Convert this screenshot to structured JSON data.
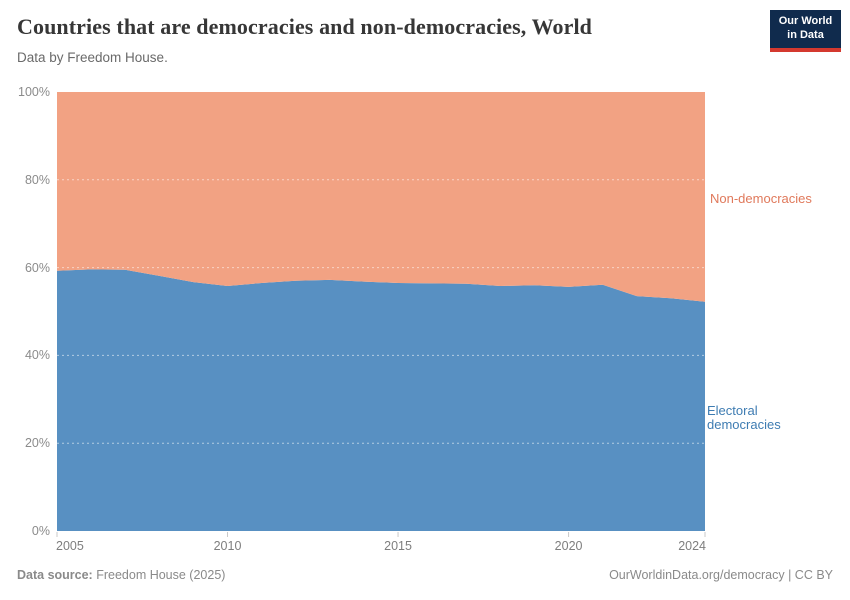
{
  "header": {
    "title": "Countries that are democracies and non-democracies, World",
    "subtitle": "Data by Freedom House.",
    "logo_line1": "Our World",
    "logo_line2": "in Data",
    "logo_bg_color": "#102B4D",
    "logo_stripe_color": "#D4392F"
  },
  "chart_data": {
    "type": "area",
    "stacked": true,
    "title": "Countries that are democracies and non-democracies, World",
    "subtitle": "Data by Freedom House.",
    "unit": "%",
    "ylim": [
      0,
      100
    ],
    "y_gridlines": [
      20,
      40,
      60,
      80
    ],
    "y_tick_labels": [
      "0%",
      "20%",
      "40%",
      "60%",
      "80%",
      "100%"
    ],
    "x_tick_labels": [
      2005,
      2010,
      2015,
      2020,
      2024
    ],
    "grid": "dashed horizontal gridlines drawn over areas",
    "legend_position": "series labels at right edge of plot",
    "x": [
      2005,
      2006,
      2007,
      2008,
      2009,
      2010,
      2011,
      2012,
      2013,
      2014,
      2015,
      2016,
      2017,
      2018,
      2019,
      2020,
      2021,
      2022,
      2023,
      2024
    ],
    "series": [
      {
        "name": "Electoral democracies",
        "color": "#5890C2",
        "label_color": "#3E7CB2",
        "values": [
          59.3,
          59.6,
          59.5,
          58.1,
          56.7,
          55.8,
          56.5,
          57.0,
          57.2,
          56.8,
          56.5,
          56.4,
          56.3,
          55.8,
          56.0,
          55.6,
          56.1,
          53.5,
          53.0,
          52.2
        ]
      },
      {
        "name": "Non-democracies",
        "color": "#F2A283",
        "label_color": "#E0795B",
        "values": [
          40.7,
          40.4,
          40.5,
          41.9,
          43.3,
          44.2,
          43.5,
          43.0,
          42.8,
          43.2,
          43.5,
          43.6,
          43.7,
          44.2,
          44.0,
          44.4,
          43.9,
          46.5,
          47.0,
          47.8
        ]
      }
    ]
  },
  "footer": {
    "source_label": "Data source:",
    "source_value": " Freedom House (2025)",
    "link_text": "OurWorldinData.org/democracy",
    "license_text": " | CC BY"
  }
}
